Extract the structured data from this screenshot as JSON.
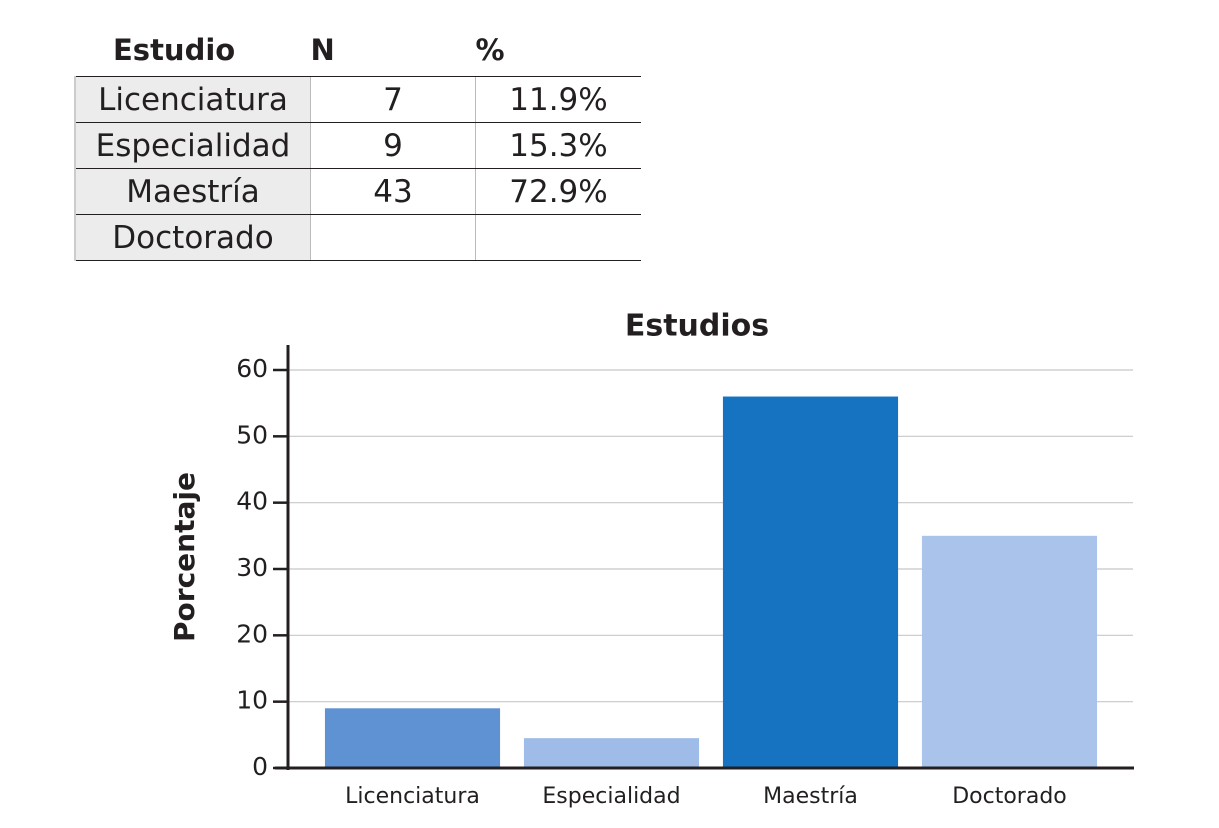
{
  "table": {
    "header": [
      "Estudio",
      "N",
      "%"
    ],
    "rows": [
      [
        "Licenciatura",
        "7",
        "11.9%"
      ],
      [
        "Especialidad",
        "9",
        "15.3%"
      ],
      [
        "Maestría",
        "43",
        "72.9%"
      ],
      [
        "Doctorado"
      ]
    ]
  },
  "chart_data": {
    "type": "bar",
    "title": "Estudios",
    "y_label": "Porcentaje",
    "categories": [
      "Licenciatura",
      "Especialidad",
      "Maestría",
      "Doctorado"
    ],
    "values": [
      9,
      4.5,
      56,
      35
    ],
    "colors": [
      "#5e92d2",
      "#9fbce8",
      "#1673c1",
      "#a9c3ea"
    ],
    "ylim": [
      0,
      63
    ],
    "yticks": [
      0,
      10,
      20,
      30,
      40,
      50,
      60
    ],
    "grid": true
  }
}
